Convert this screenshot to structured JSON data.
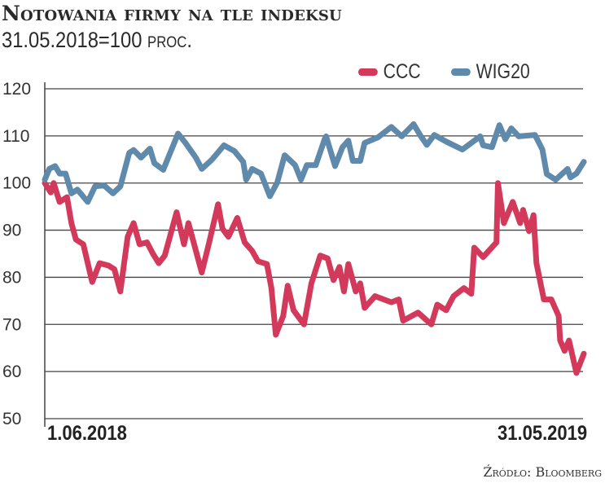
{
  "chart_data": {
    "type": "line",
    "title": "Notowania firmy na tle indeksu",
    "subtitle_value": "31.05.2018=100",
    "subtitle_unit": "proc.",
    "ylim": [
      50,
      120
    ],
    "yticks": [
      "120",
      "110",
      "100",
      "90",
      "80",
      "70",
      "60",
      "50"
    ],
    "xlim": [
      "2018-06-01",
      "2019-05-31"
    ],
    "xtick_labels": [
      "1.06.2018",
      "31.05.2019"
    ],
    "grid": true,
    "legend": "top-right",
    "source": "Źródło: Bloomberg",
    "series": [
      {
        "name": "CCC",
        "color": "#d2395a",
        "points": [
          [
            "2018-06-01",
            100
          ],
          [
            "2018-06-05",
            98
          ],
          [
            "2018-06-07",
            100
          ],
          [
            "2018-06-11",
            96
          ],
          [
            "2018-06-16",
            97
          ],
          [
            "2018-06-19",
            91.5
          ],
          [
            "2018-06-22",
            88
          ],
          [
            "2018-06-27",
            87
          ],
          [
            "2018-07-03",
            79
          ],
          [
            "2018-07-08",
            83
          ],
          [
            "2018-07-14",
            82.5
          ],
          [
            "2018-07-18",
            81.7
          ],
          [
            "2018-07-22",
            77
          ],
          [
            "2018-07-27",
            88.6
          ],
          [
            "2018-07-31",
            91.5
          ],
          [
            "2018-08-04",
            87
          ],
          [
            "2018-08-09",
            87.4
          ],
          [
            "2018-08-13",
            85
          ],
          [
            "2018-08-17",
            83
          ],
          [
            "2018-08-21",
            84.6
          ],
          [
            "2018-08-29",
            93.8
          ],
          [
            "2018-09-03",
            87
          ],
          [
            "2018-09-06",
            91.5
          ],
          [
            "2018-09-15",
            81
          ],
          [
            "2018-09-20",
            87.4
          ],
          [
            "2018-09-26",
            95.5
          ],
          [
            "2018-09-29",
            90.3
          ],
          [
            "2018-10-03",
            88.6
          ],
          [
            "2018-10-09",
            92.6
          ],
          [
            "2018-10-14",
            87.4
          ],
          [
            "2018-10-19",
            85.6
          ],
          [
            "2018-10-23",
            83.4
          ],
          [
            "2018-10-29",
            82.8
          ],
          [
            "2018-11-01",
            77.7
          ],
          [
            "2018-11-04",
            67.8
          ],
          [
            "2018-11-09",
            71.8
          ],
          [
            "2018-11-12",
            78.2
          ],
          [
            "2018-11-16",
            73
          ],
          [
            "2018-11-23",
            70
          ],
          [
            "2018-11-28",
            78.7
          ],
          [
            "2018-12-04",
            84.6
          ],
          [
            "2018-12-09",
            84
          ],
          [
            "2018-12-13",
            79.4
          ],
          [
            "2018-12-17",
            82.2
          ],
          [
            "2018-12-20",
            77
          ],
          [
            "2018-12-23",
            82.8
          ],
          [
            "2018-12-28",
            77
          ],
          [
            "2018-12-31",
            78.7
          ],
          [
            "2019-01-03",
            73.5
          ],
          [
            "2019-01-10",
            76
          ],
          [
            "2019-01-21",
            74.7
          ],
          [
            "2019-01-26",
            75.3
          ],
          [
            "2019-01-29",
            70.8
          ],
          [
            "2019-02-08",
            72.5
          ],
          [
            "2019-02-17",
            70
          ],
          [
            "2019-02-21",
            74.2
          ],
          [
            "2019-02-27",
            73
          ],
          [
            "2019-03-04",
            76
          ],
          [
            "2019-03-11",
            77.7
          ],
          [
            "2019-03-16",
            76.5
          ],
          [
            "2019-03-18",
            86.3
          ],
          [
            "2019-03-24",
            84.3
          ],
          [
            "2019-04-02",
            87.4
          ],
          [
            "2019-04-03",
            100
          ],
          [
            "2019-04-07",
            91.5
          ],
          [
            "2019-04-13",
            96
          ],
          [
            "2019-04-18",
            91.5
          ],
          [
            "2019-04-20",
            94.3
          ],
          [
            "2019-04-24",
            89.8
          ],
          [
            "2019-04-27",
            93.2
          ],
          [
            "2019-04-29",
            83
          ],
          [
            "2019-05-04",
            75.3
          ],
          [
            "2019-05-09",
            75.3
          ],
          [
            "2019-05-14",
            71.8
          ],
          [
            "2019-05-15",
            66.6
          ],
          [
            "2019-05-18",
            64.4
          ],
          [
            "2019-05-21",
            66.6
          ],
          [
            "2019-05-26",
            59.7
          ],
          [
            "2019-05-31",
            63.8
          ]
        ]
      },
      {
        "name": "WIG20",
        "color": "#5f8aab",
        "points": [
          [
            "2018-06-01",
            100.7
          ],
          [
            "2018-06-04",
            103
          ],
          [
            "2018-06-08",
            103.6
          ],
          [
            "2018-06-11",
            102
          ],
          [
            "2018-06-15",
            102
          ],
          [
            "2018-06-19",
            97.8
          ],
          [
            "2018-06-23",
            98.6
          ],
          [
            "2018-06-30",
            96
          ],
          [
            "2018-07-05",
            99.3
          ],
          [
            "2018-07-11",
            99.5
          ],
          [
            "2018-07-17",
            97.8
          ],
          [
            "2018-07-22",
            99.3
          ],
          [
            "2018-07-28",
            106.4
          ],
          [
            "2018-07-31",
            107
          ],
          [
            "2018-08-05",
            105.4
          ],
          [
            "2018-08-11",
            107.3
          ],
          [
            "2018-08-14",
            104.2
          ],
          [
            "2018-08-20",
            102.8
          ],
          [
            "2018-08-24",
            105.9
          ],
          [
            "2018-08-30",
            110.5
          ],
          [
            "2018-09-04",
            108.5
          ],
          [
            "2018-09-11",
            105.4
          ],
          [
            "2018-09-15",
            103
          ],
          [
            "2018-09-22",
            105
          ],
          [
            "2018-09-30",
            108
          ],
          [
            "2018-10-07",
            106.8
          ],
          [
            "2018-10-13",
            104.5
          ],
          [
            "2018-10-15",
            100.7
          ],
          [
            "2018-10-19",
            103
          ],
          [
            "2018-10-25",
            102
          ],
          [
            "2018-10-31",
            97.2
          ],
          [
            "2018-11-05",
            100.1
          ],
          [
            "2018-11-10",
            105.9
          ],
          [
            "2018-11-17",
            103.8
          ],
          [
            "2018-11-21",
            100.7
          ],
          [
            "2018-11-25",
            103.8
          ],
          [
            "2018-12-01",
            103.8
          ],
          [
            "2018-12-07",
            109.3
          ],
          [
            "2018-12-08",
            109.9
          ],
          [
            "2018-12-14",
            103.6
          ],
          [
            "2018-12-19",
            107.6
          ],
          [
            "2018-12-23",
            109
          ],
          [
            "2018-12-26",
            104.7
          ],
          [
            "2018-12-31",
            104.7
          ],
          [
            "2019-01-03",
            108.5
          ],
          [
            "2019-01-12",
            109.7
          ],
          [
            "2019-01-21",
            111.9
          ],
          [
            "2019-01-28",
            109.9
          ],
          [
            "2019-02-05",
            112.5
          ],
          [
            "2019-02-10",
            109.9
          ],
          [
            "2019-02-14",
            108.1
          ],
          [
            "2019-02-19",
            110.2
          ],
          [
            "2019-02-27",
            108.8
          ],
          [
            "2019-03-10",
            107.1
          ],
          [
            "2019-03-22",
            109.9
          ],
          [
            "2019-03-24",
            108
          ],
          [
            "2019-03-30",
            107.6
          ],
          [
            "2019-04-04",
            112.3
          ],
          [
            "2019-04-08",
            109.3
          ],
          [
            "2019-04-12",
            111.6
          ],
          [
            "2019-04-17",
            109.9
          ],
          [
            "2019-04-28",
            110.2
          ],
          [
            "2019-05-03",
            107.1
          ],
          [
            "2019-05-06",
            101.9
          ],
          [
            "2019-05-12",
            100.7
          ],
          [
            "2019-05-20",
            103
          ],
          [
            "2019-05-22",
            101.2
          ],
          [
            "2019-05-26",
            102
          ],
          [
            "2019-05-31",
            104.5
          ]
        ]
      }
    ]
  }
}
